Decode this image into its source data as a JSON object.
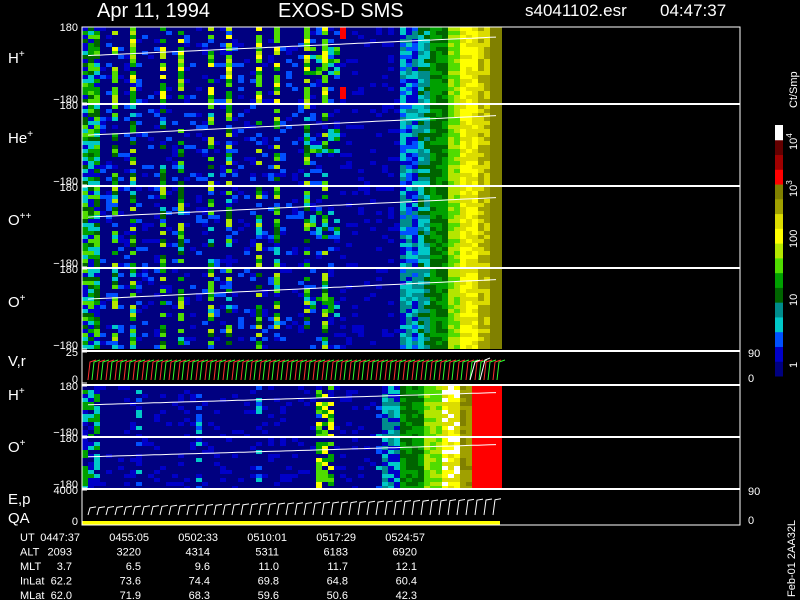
{
  "header": {
    "title": "Apr 11, 1994",
    "instrument": "EXOS-D SMS",
    "file": "s4041102.esr",
    "time": "04:47:37"
  },
  "panels": [
    {
      "label": "H",
      "sup": "+",
      "top": "180",
      "bottom": "−180"
    },
    {
      "label": "He",
      "sup": "+",
      "top": "180",
      "bottom": "−180"
    },
    {
      "label": "O",
      "sup": "++",
      "top": "180",
      "bottom": "−180"
    },
    {
      "label": "O",
      "sup": "+",
      "top": "180",
      "bottom": "−180"
    },
    {
      "label": "V,r",
      "sup": "",
      "top": "25",
      "bottom": "0",
      "right_top": "90",
      "right_bottom": "0"
    },
    {
      "label": "H",
      "sup": "+",
      "top": "180",
      "bottom": "−180"
    },
    {
      "label": "O",
      "sup": "+",
      "top": "180",
      "bottom": "−180"
    },
    {
      "label": "E,p",
      "sup": "",
      "top": "4000",
      "bottom": "0",
      "right_top": "90",
      "right_bottom": "0",
      "extra": "QA"
    }
  ],
  "table": {
    "rows": [
      [
        "UT",
        "0447:37",
        "0455:05",
        "0502:33",
        "0510:01",
        "0517:29",
        "0524:57"
      ],
      [
        "ALT",
        "2093",
        "3220",
        "4314",
        "5311",
        "6183",
        "6920"
      ],
      [
        "MLT",
        "3.7",
        "6.5",
        "9.6",
        "11.0",
        "11.7",
        "12.1"
      ],
      [
        "InLat",
        "62.2",
        "73.6",
        "74.4",
        "69.8",
        "64.8",
        "60.4"
      ],
      [
        "MLat",
        "62.0",
        "71.9",
        "68.3",
        "59.6",
        "50.6",
        "42.3"
      ]
    ]
  },
  "colorbar": {
    "unit": "Ct/Smp",
    "labels": [
      {
        "text": "10",
        "sup": "4"
      },
      {
        "text": "10",
        "sup": "3"
      },
      {
        "text": "100",
        "sup": ""
      },
      {
        "text": "10",
        "sup": ""
      },
      {
        "text": "1",
        "sup": ""
      }
    ]
  },
  "footer": "Feb-01 2AA32L"
}
